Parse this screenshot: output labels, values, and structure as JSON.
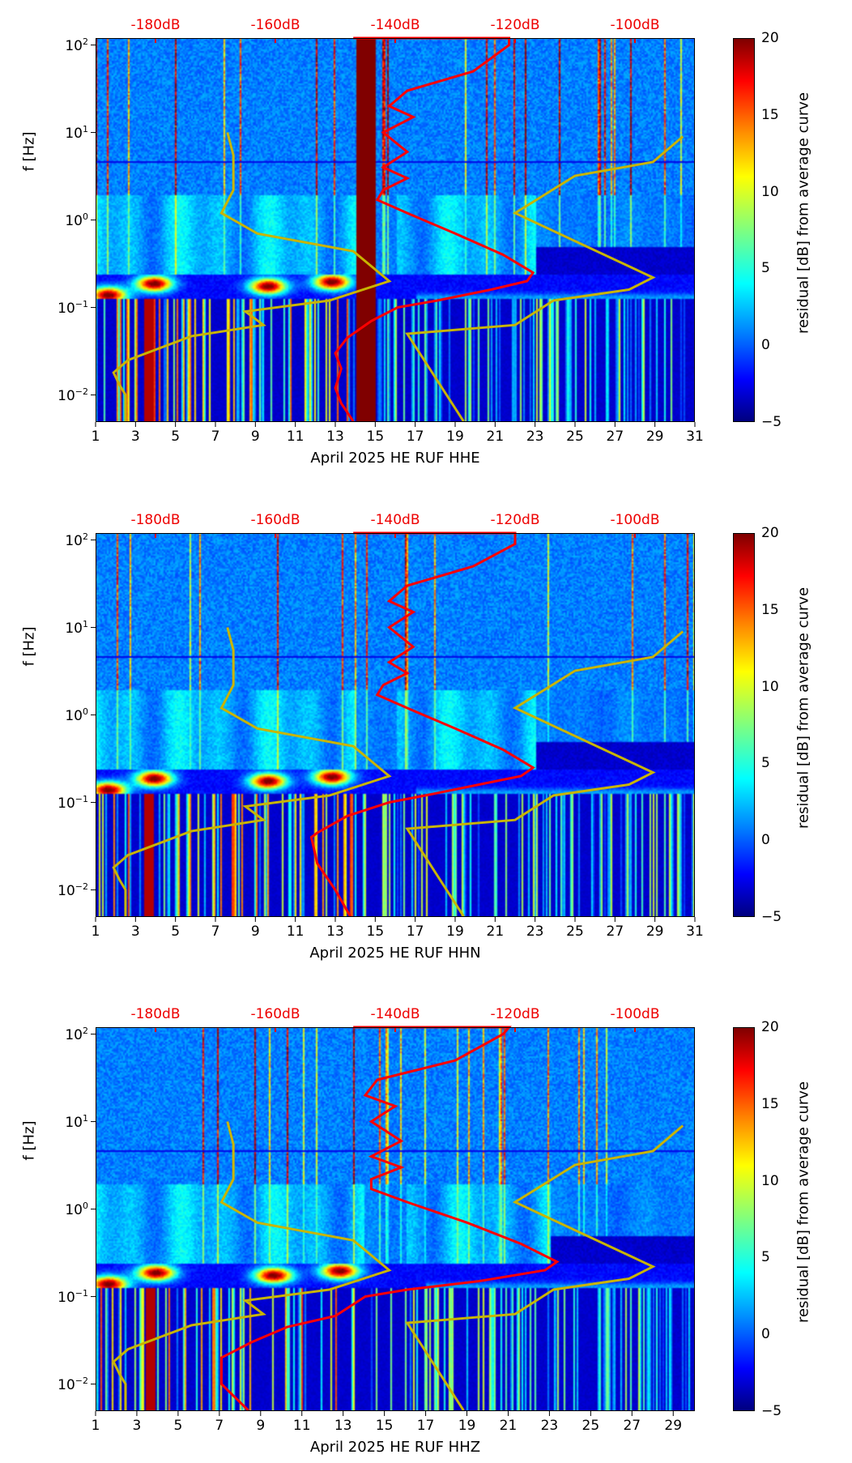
{
  "chart_data": [
    {
      "type": "heatmap",
      "channel": "HHE",
      "xlabel": "April 2025 HE RUF  HHE",
      "ylabel": "f [Hz]",
      "xlim": [
        1,
        31
      ],
      "ylim": [
        0.0049,
        120
      ],
      "yscale": "log",
      "x_ticks": [
        "1",
        "3",
        "5",
        "7",
        "9",
        "11",
        "13",
        "15",
        "17",
        "19",
        "21",
        "23",
        "25",
        "27",
        "29",
        "31"
      ],
      "y_ticks": [
        {
          "base": "10",
          "exp": "2",
          "value": 100
        },
        {
          "base": "10",
          "exp": "1",
          "value": 10
        },
        {
          "base": "10",
          "exp": "0",
          "value": 1
        },
        {
          "base": "10",
          "exp": "−1",
          "value": 0.1
        },
        {
          "base": "10",
          "exp": "−2",
          "value": 0.01
        }
      ],
      "top_axis": {
        "range_db": [
          -190,
          -90
        ],
        "ticks": [
          {
            "label": "-180dB",
            "value": -180
          },
          {
            "label": "-160dB",
            "value": -160
          },
          {
            "label": "-140dB",
            "value": -140
          },
          {
            "label": "-120dB",
            "value": -120
          },
          {
            "label": "-100dB",
            "value": -100
          }
        ]
      },
      "colorbar": {
        "label": "residual [dB] from average curve",
        "range": [
          -5,
          20
        ],
        "ticks": [
          "20",
          "15",
          "10",
          "5",
          "0",
          "−5"
        ]
      },
      "data_gap_days": [
        14,
        15
      ],
      "series": [
        {
          "name": "PSD (red)",
          "color": "#ff0000",
          "points_db_f": [
            [
              -147,
              120
            ],
            [
              -121,
              120
            ],
            [
              -121,
              100
            ],
            [
              -127,
              50
            ],
            [
              -138,
              30
            ],
            [
              -141,
              20
            ],
            [
              -137,
              15
            ],
            [
              -142,
              10
            ],
            [
              -138,
              6
            ],
            [
              -142,
              4
            ],
            [
              -138,
              3
            ],
            [
              -142,
              2.2
            ],
            [
              -143,
              1.7
            ],
            [
              -138,
              1.2
            ],
            [
              -130,
              0.7
            ],
            [
              -122,
              0.4
            ],
            [
              -117,
              0.25
            ],
            [
              -118,
              0.2
            ],
            [
              -124,
              0.16
            ],
            [
              -133,
              0.12
            ],
            [
              -139.6,
              0.1
            ],
            [
              -144,
              0.07
            ],
            [
              -148,
              0.045
            ],
            [
              -150,
              0.03
            ],
            [
              -149,
              0.02
            ],
            [
              -150,
              0.012
            ],
            [
              -149,
              0.008
            ],
            [
              -147,
              0.005
            ]
          ]
        },
        {
          "name": "NLNM (yellow)",
          "color": "#c8b400",
          "points_db_f": [
            [
              -168,
              10
            ],
            [
              -167,
              5.5
            ],
            [
              -167,
              2.2
            ],
            [
              -169,
              1.2
            ],
            [
              -163,
              0.7
            ],
            [
              -147,
              0.44
            ],
            [
              -141,
              0.2
            ],
            [
              -151,
              0.12
            ],
            [
              -165,
              0.09
            ],
            [
              -162,
              0.063
            ],
            [
              -174,
              0.047
            ],
            [
              -184.6,
              0.025
            ],
            [
              -187,
              0.018
            ],
            [
              -186,
              0.013
            ],
            [
              -185,
              0.01
            ],
            [
              -185,
              0.005
            ]
          ]
        },
        {
          "name": "NHNM (yellow)",
          "color": "#c8b400",
          "points_db_f": [
            [
              -92,
              9
            ],
            [
              -97,
              4.6
            ],
            [
              -110,
              3.2
            ],
            [
              -120,
              1.2
            ],
            [
              -97,
              0.22
            ],
            [
              -101,
              0.16
            ],
            [
              -113.6,
              0.12
            ],
            [
              -120,
              0.063
            ],
            [
              -138,
              0.05
            ],
            [
              -128.6,
              0.005
            ]
          ]
        }
      ]
    },
    {
      "type": "heatmap",
      "channel": "HHN",
      "xlabel": "April 2025 HE RUF  HHN",
      "ylabel": "f [Hz]",
      "xlim": [
        1,
        31
      ],
      "ylim": [
        0.0049,
        120
      ],
      "yscale": "log",
      "x_ticks": [
        "1",
        "3",
        "5",
        "7",
        "9",
        "11",
        "13",
        "15",
        "17",
        "19",
        "21",
        "23",
        "25",
        "27",
        "29",
        "31"
      ],
      "y_ticks": [
        {
          "base": "10",
          "exp": "2",
          "value": 100
        },
        {
          "base": "10",
          "exp": "1",
          "value": 10
        },
        {
          "base": "10",
          "exp": "0",
          "value": 1
        },
        {
          "base": "10",
          "exp": "−1",
          "value": 0.1
        },
        {
          "base": "10",
          "exp": "−2",
          "value": 0.01
        }
      ],
      "top_axis": {
        "range_db": [
          -190,
          -90
        ],
        "ticks": [
          {
            "label": "-180dB",
            "value": -180
          },
          {
            "label": "-160dB",
            "value": -160
          },
          {
            "label": "-140dB",
            "value": -140
          },
          {
            "label": "-120dB",
            "value": -120
          },
          {
            "label": "-100dB",
            "value": -100
          }
        ]
      },
      "colorbar": {
        "label": "residual [dB] from average curve",
        "range": [
          -5,
          20
        ],
        "ticks": [
          "20",
          "15",
          "10",
          "5",
          "0",
          "−5"
        ]
      },
      "data_gap_days": null,
      "series": [
        {
          "name": "PSD (red)",
          "color": "#ff0000",
          "points_db_f": [
            [
              -147,
              120
            ],
            [
              -120,
              120
            ],
            [
              -120,
              90
            ],
            [
              -127,
              50
            ],
            [
              -138,
              30
            ],
            [
              -141,
              20
            ],
            [
              -137,
              15
            ],
            [
              -141,
              10
            ],
            [
              -137,
              6
            ],
            [
              -141,
              4
            ],
            [
              -138,
              3
            ],
            [
              -142,
              2.2
            ],
            [
              -143,
              1.7
            ],
            [
              -138,
              1.2
            ],
            [
              -130,
              0.7
            ],
            [
              -122,
              0.4
            ],
            [
              -117,
              0.25
            ],
            [
              -119,
              0.2
            ],
            [
              -126,
              0.16
            ],
            [
              -135,
              0.12
            ],
            [
              -141,
              0.1
            ],
            [
              -148,
              0.07
            ],
            [
              -153,
              0.045
            ],
            [
              -154,
              0.04
            ],
            [
              -153,
              0.02
            ],
            [
              -150,
              0.01
            ],
            [
              -147.5,
              0.005
            ]
          ]
        },
        {
          "name": "NLNM (yellow)",
          "color": "#c8b400",
          "points_db_f": [
            [
              -168,
              10
            ],
            [
              -167,
              5.5
            ],
            [
              -167,
              2.2
            ],
            [
              -169,
              1.2
            ],
            [
              -163,
              0.7
            ],
            [
              -147,
              0.44
            ],
            [
              -141,
              0.2
            ],
            [
              -151,
              0.12
            ],
            [
              -165,
              0.09
            ],
            [
              -162,
              0.063
            ],
            [
              -174,
              0.047
            ],
            [
              -184.6,
              0.025
            ],
            [
              -187,
              0.018
            ],
            [
              -186,
              0.013
            ],
            [
              -185,
              0.01
            ],
            [
              -185,
              0.005
            ]
          ]
        },
        {
          "name": "NHNM (yellow)",
          "color": "#c8b400",
          "points_db_f": [
            [
              -92,
              9
            ],
            [
              -97,
              4.6
            ],
            [
              -110,
              3.2
            ],
            [
              -120,
              1.2
            ],
            [
              -97,
              0.22
            ],
            [
              -101,
              0.16
            ],
            [
              -113.6,
              0.12
            ],
            [
              -120,
              0.063
            ],
            [
              -138,
              0.05
            ],
            [
              -128.6,
              0.005
            ]
          ]
        }
      ]
    },
    {
      "type": "heatmap",
      "channel": "HHZ",
      "xlabel": "April 2025 HE RUF  HHZ",
      "ylabel": "f [Hz]",
      "xlim": [
        1,
        30.05
      ],
      "ylim": [
        0.0049,
        120
      ],
      "yscale": "log",
      "x_ticks": [
        "1",
        "3",
        "5",
        "7",
        "9",
        "11",
        "13",
        "15",
        "17",
        "19",
        "21",
        "23",
        "25",
        "27",
        "29"
      ],
      "y_ticks": [
        {
          "base": "10",
          "exp": "2",
          "value": 100
        },
        {
          "base": "10",
          "exp": "1",
          "value": 10
        },
        {
          "base": "10",
          "exp": "0",
          "value": 1
        },
        {
          "base": "10",
          "exp": "−1",
          "value": 0.1
        },
        {
          "base": "10",
          "exp": "−2",
          "value": 0.01
        }
      ],
      "top_axis": {
        "range_db": [
          -190,
          -90
        ],
        "ticks": [
          {
            "label": "-180dB",
            "value": -180
          },
          {
            "label": "-160dB",
            "value": -160
          },
          {
            "label": "-140dB",
            "value": -140
          },
          {
            "label": "-120dB",
            "value": -120
          },
          {
            "label": "-100dB",
            "value": -100
          }
        ]
      },
      "colorbar": {
        "label": "residual [dB] from average curve",
        "range": [
          -5,
          20
        ],
        "ticks": [
          "20",
          "15",
          "10",
          "5",
          "0",
          "−5"
        ]
      },
      "data_gap_days": null,
      "series": [
        {
          "name": "PSD (red)",
          "color": "#ff0000",
          "points_db_f": [
            [
              -147,
              120
            ],
            [
              -121,
              120
            ],
            [
              -122,
              100
            ],
            [
              -130,
              50
            ],
            [
              -143,
              30
            ],
            [
              -145,
              20
            ],
            [
              -140,
              15
            ],
            [
              -144,
              10
            ],
            [
              -139,
              6
            ],
            [
              -144,
              4
            ],
            [
              -139,
              3
            ],
            [
              -144,
              2.2
            ],
            [
              -144,
              1.7
            ],
            [
              -138,
              1.2
            ],
            [
              -128,
              0.7
            ],
            [
              -119,
              0.4
            ],
            [
              -113,
              0.25
            ],
            [
              -115,
              0.2
            ],
            [
              -126,
              0.15
            ],
            [
              -138,
              0.12
            ],
            [
              -145,
              0.1
            ],
            [
              -150,
              0.06
            ],
            [
              -158,
              0.045
            ],
            [
              -164,
              0.03
            ],
            [
              -169,
              0.02
            ],
            [
              -169,
              0.015
            ],
            [
              -169,
              0.01
            ],
            [
              -164.5,
              0.005
            ]
          ]
        },
        {
          "name": "NLNM (yellow)",
          "color": "#c8b400",
          "points_db_f": [
            [
              -168,
              10
            ],
            [
              -167,
              5.5
            ],
            [
              -167,
              2.2
            ],
            [
              -169,
              1.2
            ],
            [
              -163,
              0.7
            ],
            [
              -147,
              0.44
            ],
            [
              -141,
              0.2
            ],
            [
              -151,
              0.12
            ],
            [
              -165,
              0.09
            ],
            [
              -162,
              0.063
            ],
            [
              -174,
              0.047
            ],
            [
              -184.6,
              0.025
            ],
            [
              -187,
              0.018
            ],
            [
              -186,
              0.013
            ],
            [
              -185,
              0.01
            ],
            [
              -185,
              0.005
            ]
          ]
        },
        {
          "name": "NHNM (yellow)",
          "color": "#c8b400",
          "points_db_f": [
            [
              -92,
              9
            ],
            [
              -97,
              4.6
            ],
            [
              -110,
              3.2
            ],
            [
              -120,
              1.2
            ],
            [
              -97,
              0.22
            ],
            [
              -101,
              0.16
            ],
            [
              -113.6,
              0.12
            ],
            [
              -120,
              0.063
            ],
            [
              -138,
              0.05
            ],
            [
              -128.6,
              0.005
            ]
          ]
        }
      ]
    }
  ]
}
